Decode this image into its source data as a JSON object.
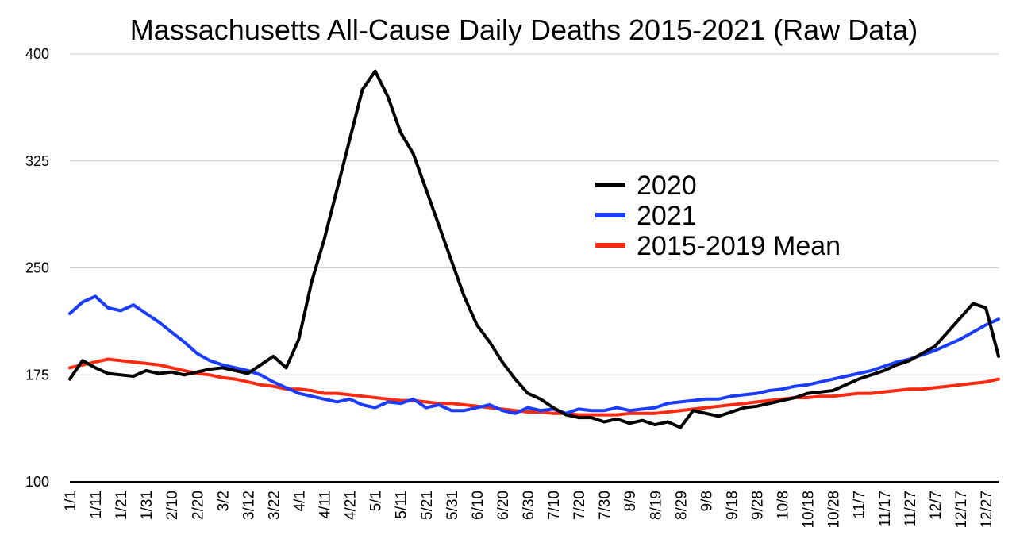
{
  "chart_data": {
    "type": "line",
    "title": "Massachusetts All-Cause Daily Deaths 2015-2021 (Raw Data)",
    "xlabel": "",
    "ylabel": "",
    "ylim": [
      100,
      400
    ],
    "yticks": [
      100,
      175,
      250,
      325,
      400
    ],
    "grid": true,
    "legend_position": "center-right",
    "categories": [
      "1/1",
      "1/11",
      "1/21",
      "1/31",
      "2/10",
      "2/20",
      "3/2",
      "3/12",
      "3/22",
      "4/1",
      "4/11",
      "4/21",
      "5/1",
      "5/11",
      "5/21",
      "5/31",
      "6/10",
      "6/20",
      "6/30",
      "7/10",
      "7/20",
      "7/30",
      "8/9",
      "8/19",
      "8/29",
      "9/8",
      "9/18",
      "9/28",
      "10/8",
      "10/18",
      "10/28",
      "11/7",
      "11/17",
      "11/27",
      "12/7",
      "12/17",
      "12/27"
    ],
    "series": [
      {
        "name": "2020",
        "color": "#000000",
        "x": [
          1,
          6,
          11,
          16,
          21,
          26,
          31,
          36,
          41,
          46,
          51,
          56,
          61,
          66,
          71,
          76,
          81,
          86,
          91,
          96,
          101,
          106,
          111,
          116,
          121,
          126,
          131,
          136,
          141,
          146,
          151,
          156,
          161,
          166,
          171,
          176,
          181,
          186,
          191,
          196,
          201,
          206,
          211,
          216,
          221,
          226,
          231,
          236,
          241,
          246,
          251,
          256,
          261,
          266,
          271,
          276,
          281,
          286,
          291,
          296,
          301,
          306,
          311,
          316,
          321,
          326,
          331,
          336,
          341,
          346,
          351,
          356,
          361,
          366
        ],
        "values": [
          172,
          185,
          180,
          176,
          175,
          174,
          178,
          176,
          177,
          175,
          177,
          179,
          180,
          178,
          176,
          182,
          188,
          180,
          200,
          240,
          270,
          305,
          340,
          375,
          388,
          370,
          345,
          330,
          305,
          280,
          255,
          230,
          210,
          198,
          184,
          172,
          162,
          158,
          152,
          147,
          145,
          145,
          142,
          144,
          141,
          143,
          140,
          142,
          138,
          150,
          148,
          146,
          149,
          152,
          153,
          155,
          157,
          159,
          162,
          163,
          164,
          168,
          172,
          175,
          178,
          182,
          185,
          190,
          195,
          205,
          215,
          225,
          222,
          188
        ]
      },
      {
        "name": "2021",
        "color": "#1a3cff",
        "x": [
          1,
          6,
          11,
          16,
          21,
          26,
          31,
          36,
          41,
          46,
          51,
          56,
          61,
          66,
          71,
          76,
          81,
          86,
          91,
          96,
          101,
          106,
          111,
          116,
          121,
          126,
          131,
          136,
          141,
          146,
          151,
          156,
          161,
          166,
          171,
          176,
          181,
          186,
          191,
          196,
          201,
          206,
          211,
          216,
          221,
          226,
          231,
          236,
          241,
          246,
          251,
          256,
          261,
          266,
          271,
          276,
          281,
          286,
          291,
          296,
          301,
          306,
          311,
          316,
          321,
          326,
          331,
          336,
          341,
          346,
          351,
          356,
          361,
          366
        ],
        "values": [
          218,
          226,
          230,
          222,
          220,
          224,
          218,
          212,
          205,
          198,
          190,
          185,
          182,
          180,
          178,
          175,
          170,
          166,
          162,
          160,
          158,
          156,
          158,
          154,
          152,
          156,
          155,
          158,
          152,
          154,
          150,
          150,
          152,
          154,
          150,
          148,
          152,
          150,
          151,
          148,
          151,
          150,
          150,
          152,
          150,
          151,
          152,
          155,
          156,
          157,
          158,
          158,
          160,
          161,
          162,
          164,
          165,
          167,
          168,
          170,
          172,
          174,
          176,
          178,
          181,
          184,
          186,
          189,
          192,
          196,
          200,
          205,
          210,
          214
        ]
      },
      {
        "name": "2015-2019 Mean",
        "color": "#ff2a0f",
        "x": [
          1,
          6,
          11,
          16,
          21,
          26,
          31,
          36,
          41,
          46,
          51,
          56,
          61,
          66,
          71,
          76,
          81,
          86,
          91,
          96,
          101,
          106,
          111,
          116,
          121,
          126,
          131,
          136,
          141,
          146,
          151,
          156,
          161,
          166,
          171,
          176,
          181,
          186,
          191,
          196,
          201,
          206,
          211,
          216,
          221,
          226,
          231,
          236,
          241,
          246,
          251,
          256,
          261,
          266,
          271,
          276,
          281,
          286,
          291,
          296,
          301,
          306,
          311,
          316,
          321,
          326,
          331,
          336,
          341,
          346,
          351,
          356,
          361,
          366
        ],
        "values": [
          180,
          182,
          184,
          186,
          185,
          184,
          183,
          182,
          180,
          178,
          176,
          175,
          173,
          172,
          170,
          168,
          167,
          165,
          165,
          164,
          162,
          162,
          161,
          160,
          159,
          158,
          157,
          157,
          156,
          155,
          155,
          154,
          153,
          152,
          151,
          150,
          149,
          149,
          148,
          148,
          147,
          147,
          147,
          147,
          148,
          148,
          148,
          149,
          150,
          151,
          152,
          153,
          154,
          155,
          156,
          157,
          158,
          159,
          159,
          160,
          160,
          161,
          162,
          162,
          163,
          164,
          165,
          165,
          166,
          167,
          168,
          169,
          170,
          172
        ]
      }
    ]
  }
}
